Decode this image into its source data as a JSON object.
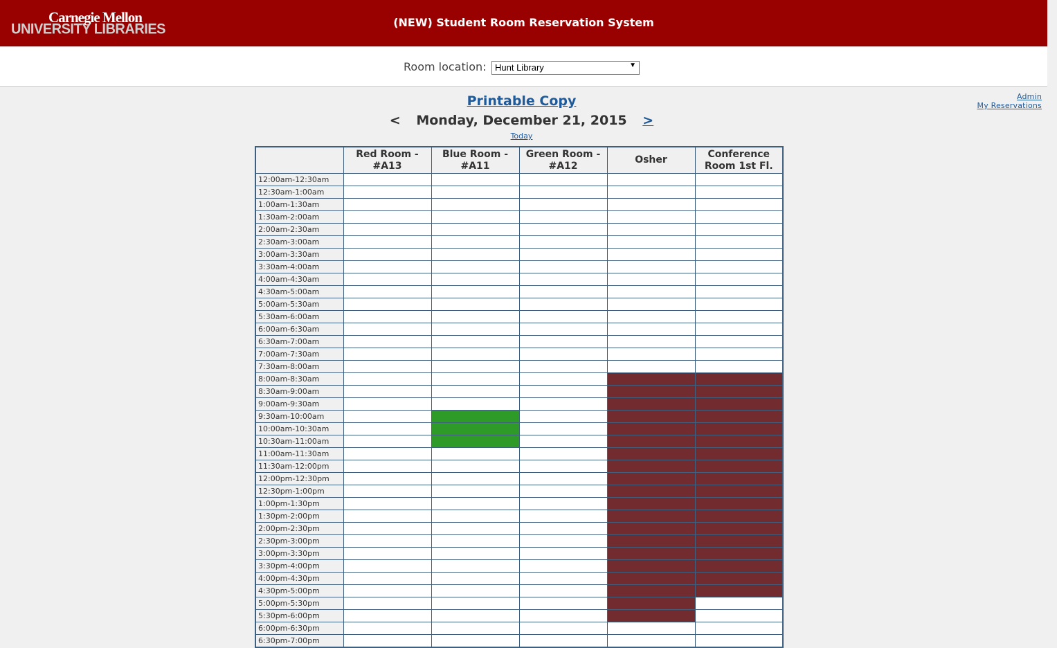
{
  "header": {
    "logo_line1": "Carnegie Mellon",
    "logo_line2": "UNIVERSITY LIBRARIES",
    "title": "(NEW) Student Room Reservation System"
  },
  "location": {
    "label": "Room location:",
    "selected": "Hunt Library"
  },
  "links": {
    "admin": "Admin",
    "my_reservations": "My Reservations"
  },
  "printable": "Printable Copy",
  "nav": {
    "prev": "<",
    "date": "Monday, December 21, 2015",
    "next": ">",
    "today": "Today"
  },
  "colors": {
    "header": "#990000",
    "reserved": "#722c30",
    "mine": "#2e9b29",
    "link": "#1f5a9a"
  },
  "rooms": [
    "Red Room - #A13",
    "Blue Room - #A11",
    "Green Room - #A12",
    "Osher",
    "Conference Room 1st Fl."
  ],
  "time_slots": [
    "12:00am-12:30am",
    "12:30am-1:00am",
    "1:00am-1:30am",
    "1:30am-2:00am",
    "2:00am-2:30am",
    "2:30am-3:00am",
    "3:00am-3:30am",
    "3:30am-4:00am",
    "4:00am-4:30am",
    "4:30am-5:00am",
    "5:00am-5:30am",
    "5:30am-6:00am",
    "6:00am-6:30am",
    "6:30am-7:00am",
    "7:00am-7:30am",
    "7:30am-8:00am",
    "8:00am-8:30am",
    "8:30am-9:00am",
    "9:00am-9:30am",
    "9:30am-10:00am",
    "10:00am-10:30am",
    "10:30am-11:00am",
    "11:00am-11:30am",
    "11:30am-12:00pm",
    "12:00pm-12:30pm",
    "12:30pm-1:00pm",
    "1:00pm-1:30pm",
    "1:30pm-2:00pm",
    "2:00pm-2:30pm",
    "2:30pm-3:00pm",
    "3:00pm-3:30pm",
    "3:30pm-4:00pm",
    "4:00pm-4:30pm",
    "4:30pm-5:00pm",
    "5:00pm-5:30pm",
    "5:30pm-6:00pm",
    "6:00pm-6:30pm",
    "6:30pm-7:00pm"
  ],
  "bookings": [
    {
      "room": "Blue Room - #A11",
      "from": "9:30am-10:00am",
      "to": "10:30am-11:00am",
      "status": "mine"
    },
    {
      "room": "Osher",
      "from": "8:00am-8:30am",
      "to": "5:30pm-6:00pm",
      "status": "reserved"
    },
    {
      "room": "Conference Room 1st Fl.",
      "from": "8:00am-8:30am",
      "to": "4:30pm-5:00pm",
      "status": "reserved"
    }
  ]
}
